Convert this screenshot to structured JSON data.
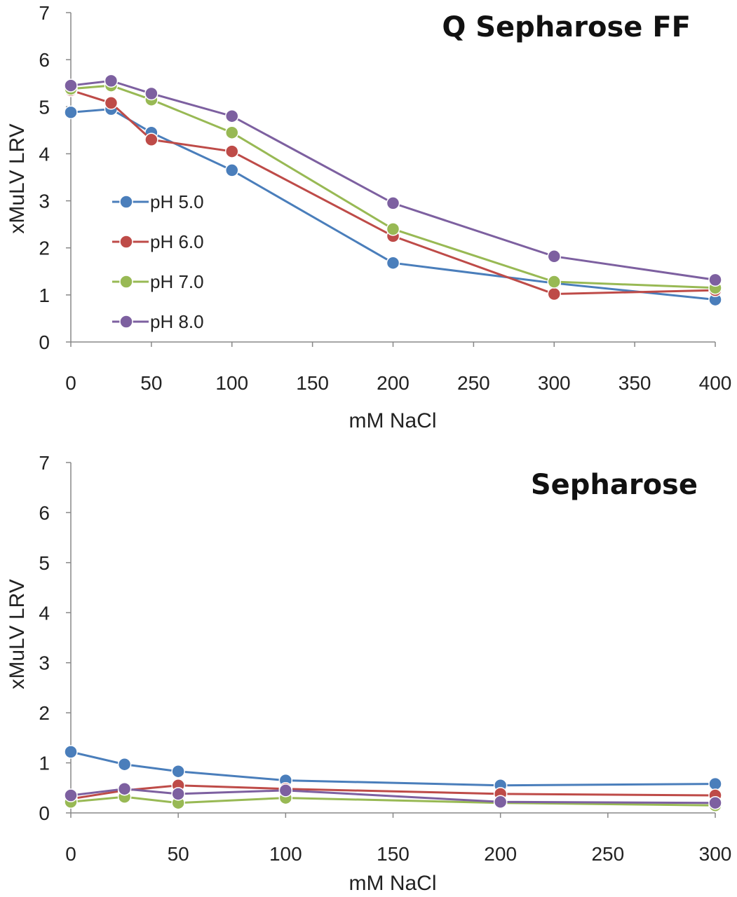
{
  "chart_data": [
    {
      "type": "line",
      "title": "Q Sepharose FF",
      "xlabel": "mM NaCl",
      "ylabel": "xMuLV LRV",
      "xlim": [
        0,
        400
      ],
      "ylim": [
        0,
        7
      ],
      "x_ticks": [
        "0",
        "50",
        "100",
        "150",
        "200",
        "250",
        "300",
        "350",
        "400"
      ],
      "y_ticks": [
        "0",
        "1",
        "2",
        "3",
        "4",
        "5",
        "6",
        "7"
      ],
      "grid": false,
      "legend": "left-middle",
      "x": [
        0,
        25,
        50,
        100,
        200,
        300,
        400
      ],
      "series": [
        {
          "name": "pH 5.0",
          "color": "#4a7ebb",
          "values": [
            4.88,
            4.95,
            4.45,
            3.65,
            1.68,
            1.25,
            0.9
          ]
        },
        {
          "name": "pH 6.0",
          "color": "#be4b48",
          "values": [
            5.35,
            5.08,
            4.3,
            4.05,
            2.25,
            1.02,
            1.1
          ]
        },
        {
          "name": "pH 7.0",
          "color": "#98b954",
          "values": [
            5.38,
            5.45,
            5.15,
            4.45,
            2.4,
            1.28,
            1.15
          ]
        },
        {
          "name": "pH 8.0",
          "color": "#7d60a0",
          "values": [
            5.45,
            5.55,
            5.28,
            4.8,
            2.95,
            1.82,
            1.32
          ]
        }
      ]
    },
    {
      "type": "line",
      "title": "Sepharose",
      "xlabel": "mM NaCl",
      "ylabel": "xMuLV LRV",
      "xlim": [
        0,
        300
      ],
      "ylim": [
        0,
        7
      ],
      "x_ticks": [
        "0",
        "50",
        "100",
        "150",
        "200",
        "250",
        "300"
      ],
      "y_ticks": [
        "0",
        "1",
        "2",
        "3",
        "4",
        "5",
        "6",
        "7"
      ],
      "grid": false,
      "x": [
        0,
        25,
        50,
        100,
        200,
        300
      ],
      "series": [
        {
          "name": "pH 5.0",
          "color": "#4a7ebb",
          "values": [
            1.22,
            0.97,
            0.83,
            0.65,
            0.55,
            0.58
          ]
        },
        {
          "name": "pH 6.0",
          "color": "#be4b48",
          "values": [
            0.28,
            0.45,
            0.55,
            0.48,
            0.38,
            0.35
          ]
        },
        {
          "name": "pH 7.0",
          "color": "#98b954",
          "values": [
            0.22,
            0.32,
            0.2,
            0.3,
            0.2,
            0.15
          ]
        },
        {
          "name": "pH 8.0",
          "color": "#7d60a0",
          "values": [
            0.35,
            0.48,
            0.38,
            0.45,
            0.22,
            0.2
          ]
        }
      ]
    }
  ]
}
